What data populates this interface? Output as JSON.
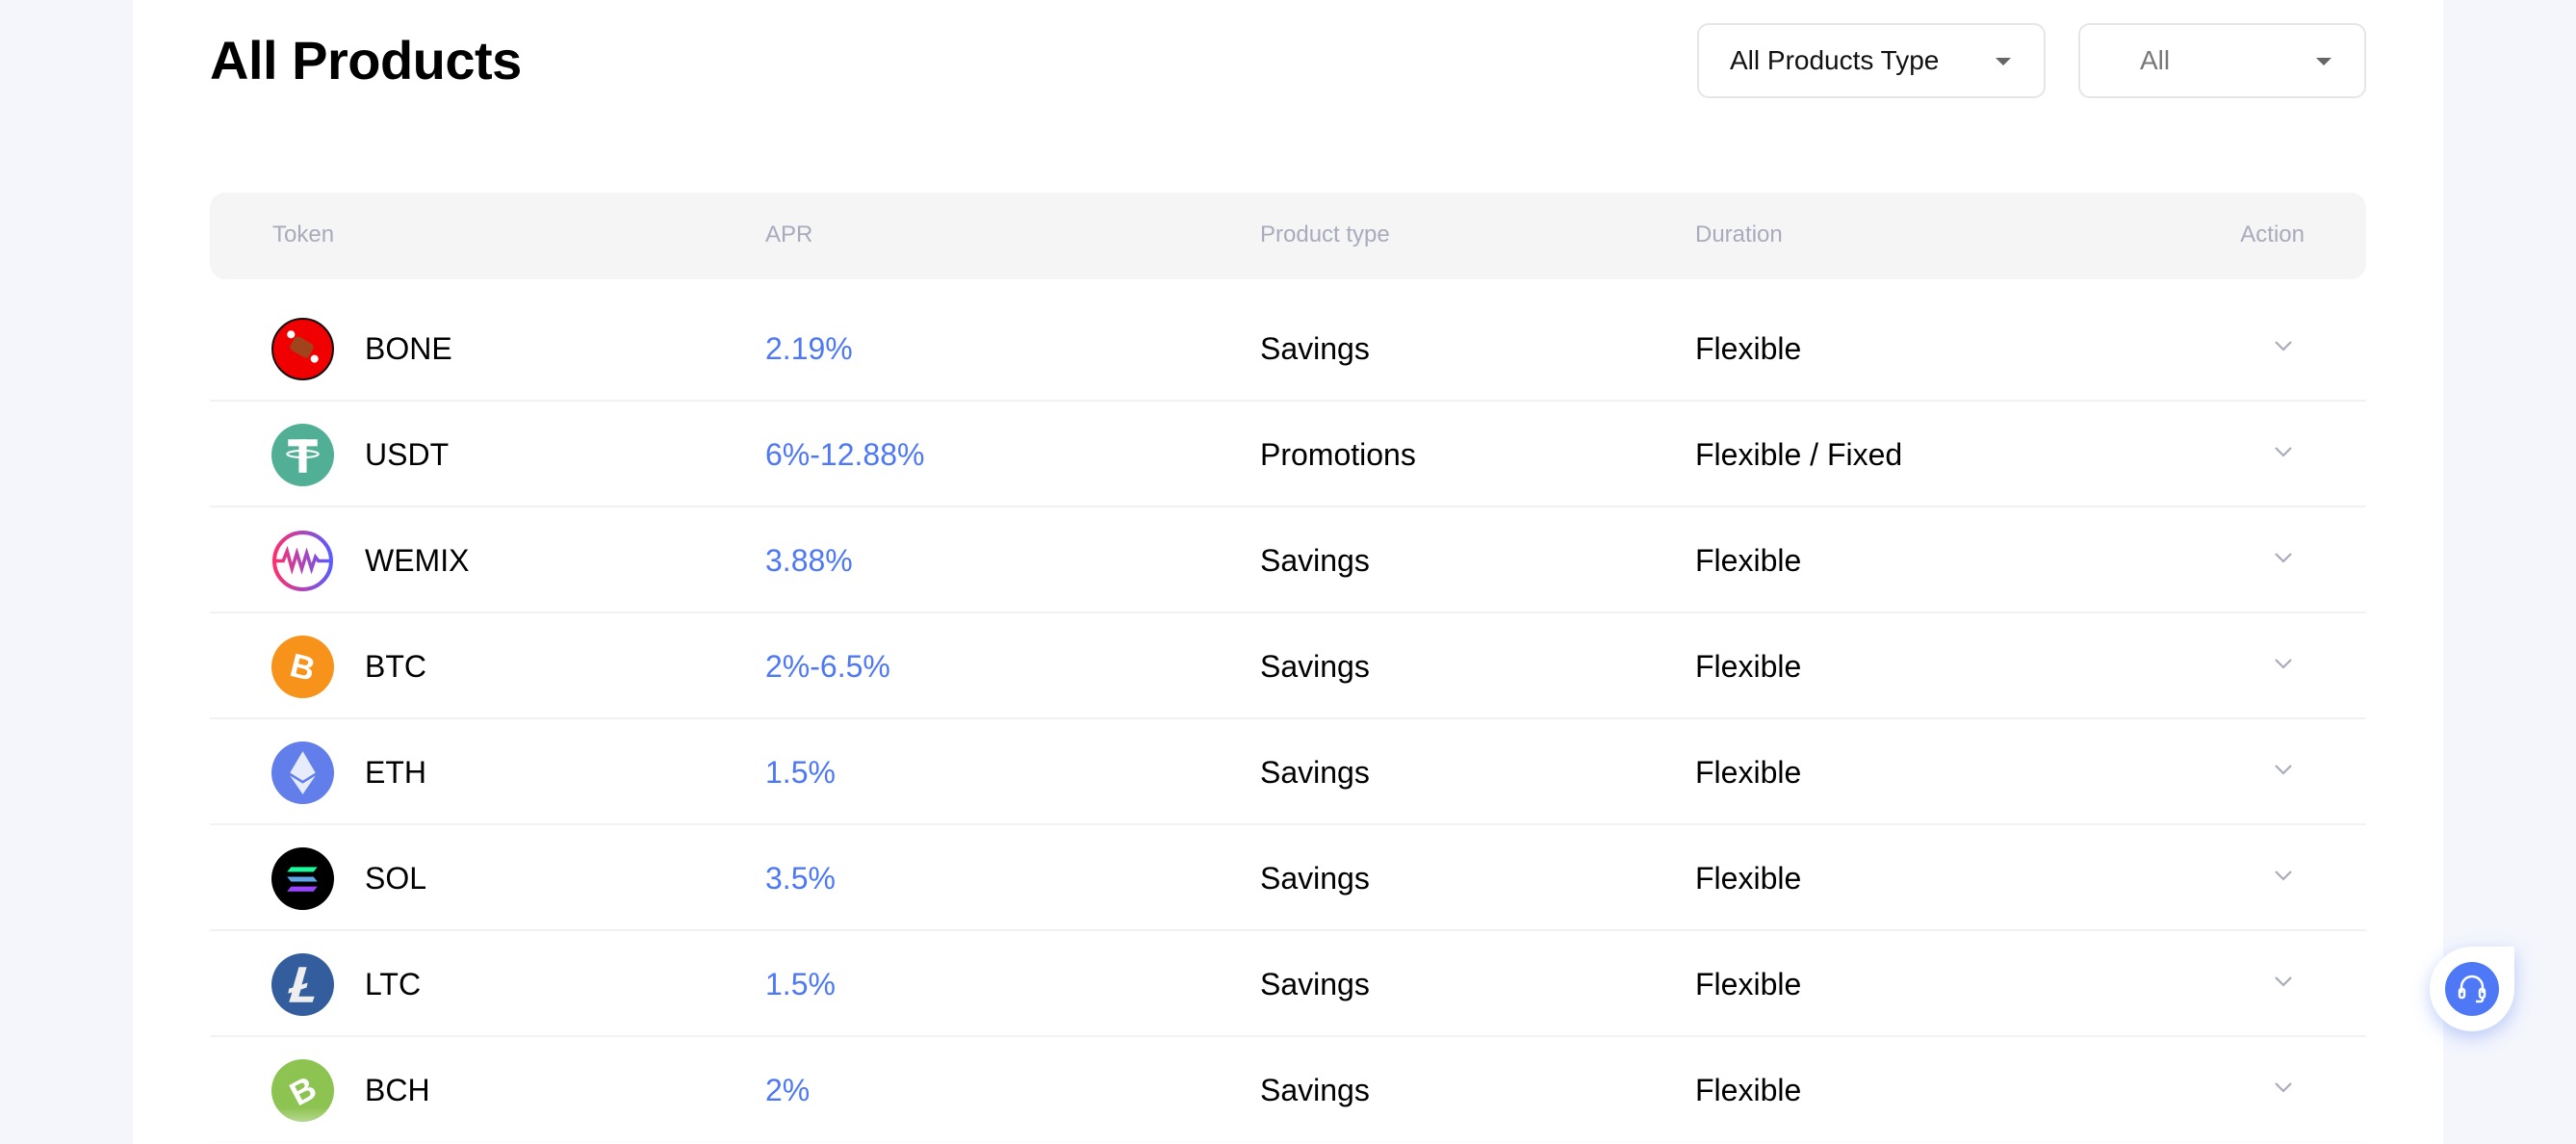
{
  "page": {
    "title": "All Products"
  },
  "filters": {
    "product_type": "All Products Type",
    "duration": "All"
  },
  "table": {
    "headers": {
      "token": "Token",
      "apr": "APR",
      "product_type": "Product type",
      "duration": "Duration",
      "action": "Action"
    },
    "rows": [
      {
        "token": "BONE",
        "icon": "bone-token-icon",
        "color": "#f00000",
        "apr": "2.19%",
        "product_type": "Savings",
        "duration": "Flexible"
      },
      {
        "token": "USDT",
        "icon": "usdt-token-icon",
        "color": "#50af95",
        "apr": "6%-12.88%",
        "product_type": "Promotions",
        "duration": "Flexible / Fixed"
      },
      {
        "token": "WEMIX",
        "icon": "wemix-token-icon",
        "color": "#ff2e6e",
        "apr": "3.88%",
        "product_type": "Savings",
        "duration": "Flexible"
      },
      {
        "token": "BTC",
        "icon": "btc-token-icon",
        "color": "#f7931a",
        "apr": "2%-6.5%",
        "product_type": "Savings",
        "duration": "Flexible"
      },
      {
        "token": "ETH",
        "icon": "eth-token-icon",
        "color": "#627eea",
        "apr": "1.5%",
        "product_type": "Savings",
        "duration": "Flexible"
      },
      {
        "token": "SOL",
        "icon": "sol-token-icon",
        "color": "#000000",
        "apr": "3.5%",
        "product_type": "Savings",
        "duration": "Flexible"
      },
      {
        "token": "LTC",
        "icon": "ltc-token-icon",
        "color": "#345d9d",
        "apr": "1.5%",
        "product_type": "Savings",
        "duration": "Flexible"
      },
      {
        "token": "BCH",
        "icon": "bch-token-icon",
        "color": "#8dc351",
        "apr": "2%",
        "product_type": "Savings",
        "duration": "Flexible"
      }
    ]
  },
  "colors": {
    "accent": "#4e78f6",
    "background": "#f4f6fc",
    "header_bg": "#f5f5f5"
  },
  "support": {
    "icon": "headset-icon"
  }
}
